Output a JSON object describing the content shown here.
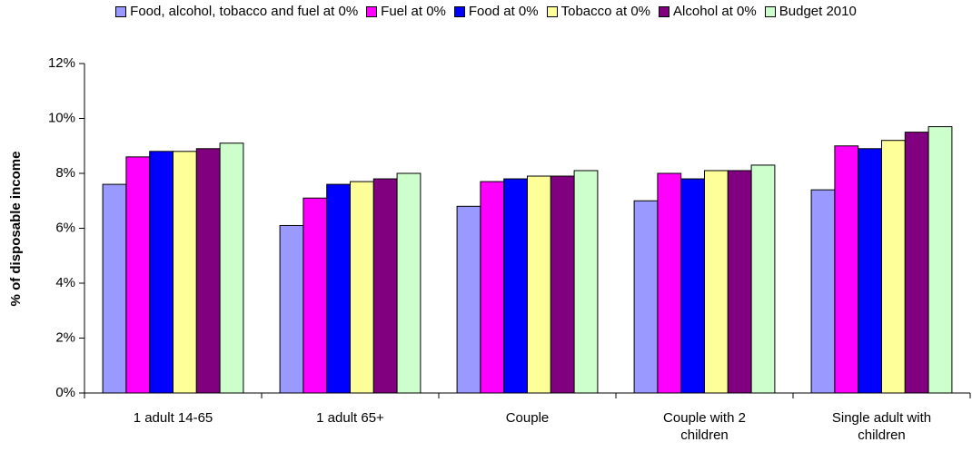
{
  "chart_data": {
    "type": "bar",
    "y_label": "% of disposable income",
    "categories": [
      "1 adult 14-65",
      "1 adult 65+",
      "Couple",
      "Couple with 2 children",
      "Single adult with children"
    ],
    "series": [
      {
        "name": "Food, alcohol, tobacco and fuel at 0%",
        "color": "#9999ff",
        "values": [
          7.6,
          6.1,
          6.8,
          7.0,
          7.4
        ]
      },
      {
        "name": "Fuel at 0%",
        "color": "#ff00ff",
        "values": [
          8.6,
          7.1,
          7.7,
          8.0,
          9.0
        ]
      },
      {
        "name": "Food at 0%",
        "color": "#0000ff",
        "values": [
          8.8,
          7.6,
          7.8,
          7.8,
          8.9
        ]
      },
      {
        "name": "Tobacco at 0%",
        "color": "#ffff99",
        "values": [
          8.8,
          7.7,
          7.9,
          8.1,
          9.2
        ]
      },
      {
        "name": "Alcohol at 0%",
        "color": "#800080",
        "values": [
          8.9,
          7.8,
          7.9,
          8.1,
          9.5
        ]
      },
      {
        "name": "Budget 2010",
        "color": "#ccffcc",
        "values": [
          9.1,
          8.0,
          8.1,
          8.3,
          9.7
        ]
      }
    ],
    "ylim": [
      0,
      12
    ],
    "yticks": [
      {
        "value": 0,
        "label": "0%"
      },
      {
        "value": 2,
        "label": "2%"
      },
      {
        "value": 4,
        "label": "4%"
      },
      {
        "value": 6,
        "label": "6%"
      },
      {
        "value": 8,
        "label": "8%"
      },
      {
        "value": 10,
        "label": "10%"
      },
      {
        "value": 12,
        "label": "12%"
      }
    ],
    "legend": "top"
  }
}
